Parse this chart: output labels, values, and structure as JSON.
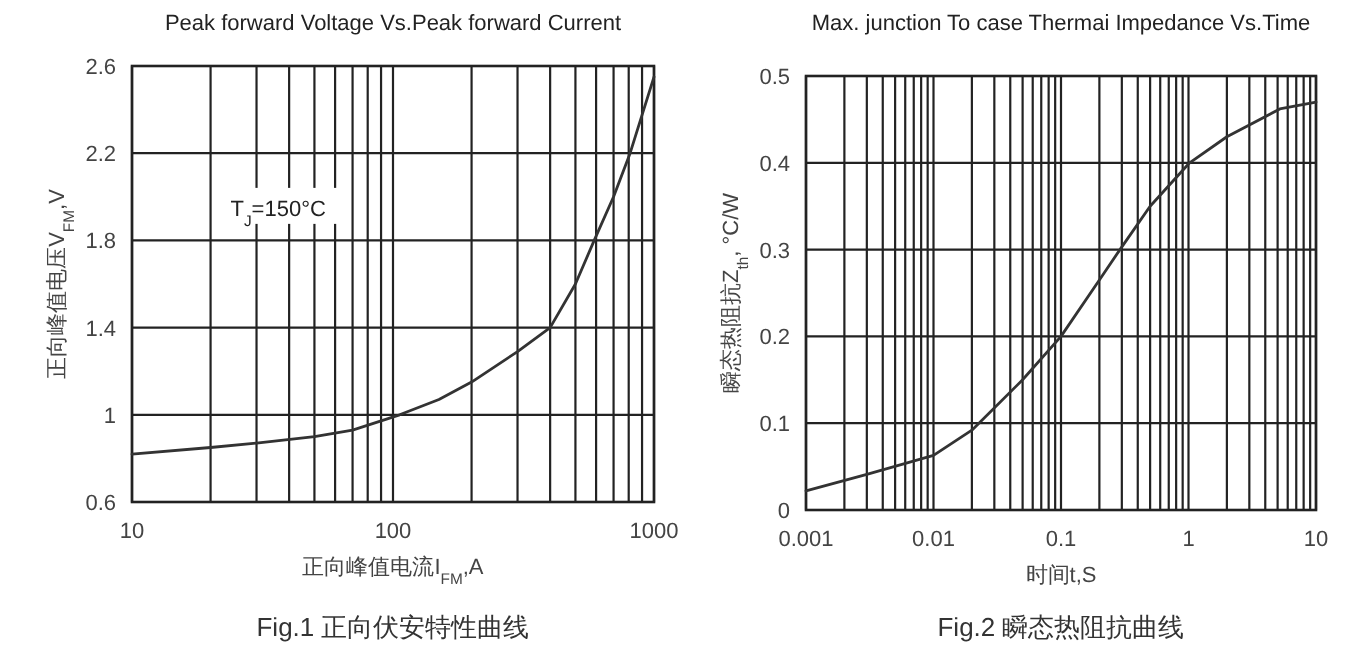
{
  "chart_data": [
    {
      "type": "line",
      "title": "Peak forward Voltage Vs.Peak forward Current",
      "xlabel": "正向峰值电流I$_{FM}$,A",
      "ylabel": "正向峰值电压V$_{FM}$,V",
      "log": "x",
      "grid": true,
      "xlim": [
        10,
        1000
      ],
      "ylim": [
        0.6,
        2.6
      ],
      "xticks": [
        10,
        100,
        1000
      ],
      "yticks": [
        0.6,
        1,
        1.4,
        1.8,
        2.2,
        2.6
      ],
      "series": [
        {
          "color": "#333333",
          "x": [
            10,
            20,
            30,
            50,
            70,
            106,
            150,
            200,
            300,
            400,
            500,
            590,
            700,
            810,
            1000
          ],
          "values": [
            0.82,
            0.85,
            0.87,
            0.9,
            0.93,
            1.0,
            1.07,
            1.15,
            1.29,
            1.4,
            1.6,
            1.8,
            2.0,
            2.2,
            2.55
          ]
        }
      ],
      "annotations": [
        "T$_{J}$=150°C",
        "Fig.1 正向伏安特性曲线"
      ]
    },
    {
      "type": "line",
      "title": "Max. junction To case Thermai Impedance Vs.Time",
      "xlabel": "时间t,S",
      "ylabel": "瞬态热阻抗Z$_{th}$, °C/W",
      "log": "x",
      "grid": true,
      "xlim": [
        0.001,
        10
      ],
      "ylim": [
        0,
        0.5
      ],
      "xticks": [
        0.001,
        0.01,
        0.1,
        1,
        10
      ],
      "yticks": [
        0,
        0.1,
        0.2,
        0.3,
        0.4,
        0.5
      ],
      "series": [
        {
          "color": "#333333",
          "x": [
            0.001,
            0.003,
            0.01,
            0.02,
            0.05,
            0.1,
            0.2,
            0.29,
            0.5,
            1.02,
            2,
            5.2,
            10
          ],
          "values": [
            0.022,
            0.041,
            0.063,
            0.092,
            0.15,
            0.2,
            0.265,
            0.3,
            0.35,
            0.4,
            0.43,
            0.462,
            0.47
          ]
        }
      ],
      "annotations": [
        "Fig.2 瞬态热阻抗曲线"
      ]
    }
  ]
}
